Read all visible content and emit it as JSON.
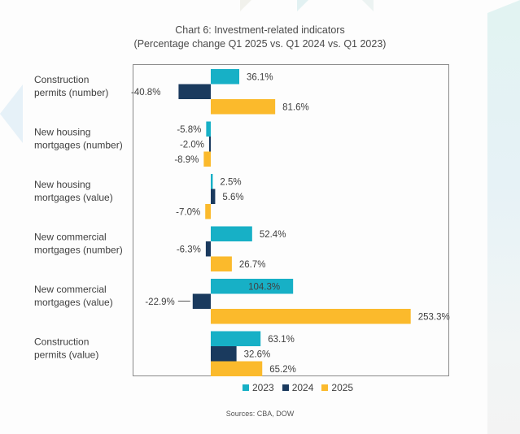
{
  "chart_data": {
    "type": "bar",
    "orientation": "horizontal",
    "title": "Chart 6: Investment-related indicators",
    "subtitle": "(Percentage change  Q1 2025 vs. Q1 2024 vs. Q1 2023)",
    "categories": [
      [
        "Construction",
        "permits (number)"
      ],
      [
        "New housing",
        "mortgages (number)"
      ],
      [
        "New housing",
        "mortgages (value)"
      ],
      [
        "New commercial",
        "mortgages (number)"
      ],
      [
        "New commercial",
        "mortgages (value)"
      ],
      [
        "Construction",
        "permits (value)"
      ]
    ],
    "series": [
      {
        "name": "2023",
        "color": "#17b0c6",
        "values": [
          36.1,
          -5.8,
          2.5,
          52.4,
          104.3,
          63.1
        ],
        "labels": [
          "36.1%",
          "-5.8%",
          "2.5%",
          "52.4%",
          "104.3%",
          "63.1%"
        ]
      },
      {
        "name": "2024",
        "color": "#1a3a5e",
        "values": [
          -40.8,
          -2.0,
          5.6,
          -6.3,
          -22.9,
          32.6
        ],
        "labels": [
          "-40.8%",
          "-2.0%",
          "5.6%",
          "-6.3%",
          "-22.9%",
          "32.6%"
        ]
      },
      {
        "name": "2025",
        "color": "#fbba2c",
        "values": [
          81.6,
          -8.9,
          -7.0,
          26.7,
          253.3,
          65.2
        ],
        "labels": [
          "81.6%",
          "-8.9%",
          "-7.0%",
          "26.7%",
          "253.3%",
          "65.2%"
        ]
      }
    ],
    "xlim": [
      -100,
      300
    ],
    "grid": false,
    "axis_ticks_visible": false,
    "legend": "bottom-center",
    "source": "Sources: CBA,  DOW"
  }
}
